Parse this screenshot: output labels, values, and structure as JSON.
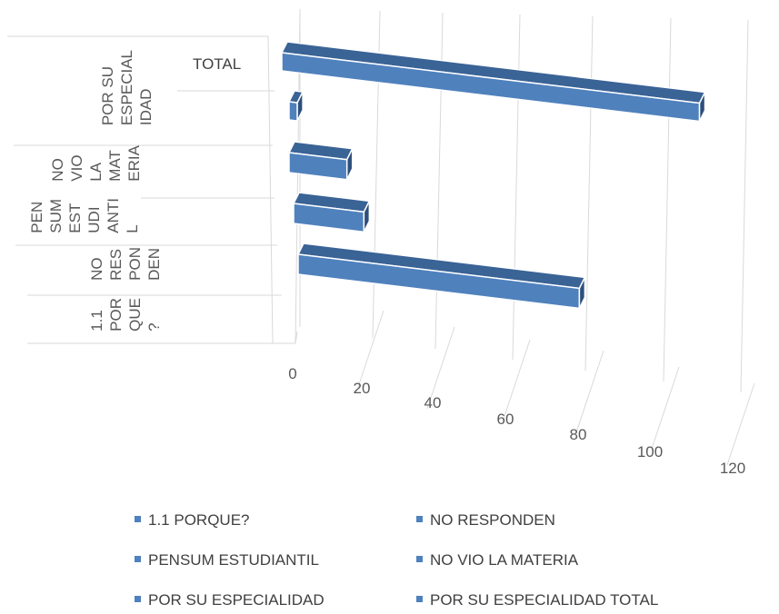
{
  "chart_data": {
    "type": "bar",
    "orientation": "horizontal-3d",
    "categories": [
      "1.1 POR QUE ?",
      "NO RES PON DEN",
      "PEN SUM EST UDI ANTI L",
      "NO VIO LA MAT ERIA",
      "POR SU ESPECIAL IDAD",
      "TOTAL"
    ],
    "category_label_lines": [
      [
        "1.1",
        "POR",
        "QUE",
        "?"
      ],
      [
        "NO",
        "RES",
        "PON",
        "DEN"
      ],
      [
        "PEN",
        "SUM",
        "EST",
        "UDI",
        "ANTI",
        "L"
      ],
      [
        "NO",
        "VIO",
        "LA",
        "MAT",
        "ERIA"
      ],
      [
        "POR SU",
        "ESPECIAL",
        "IDAD"
      ]
    ],
    "total_label": "TOTAL",
    "series": [
      {
        "name": "1.1 PORQUE?",
        "values": [
          0,
          0,
          0,
          0,
          0,
          0
        ]
      },
      {
        "name": "NO RESPONDEN",
        "values": [
          0,
          68,
          0,
          0,
          0,
          0
        ]
      },
      {
        "name": "PENSUM ESTUDIANTIL",
        "values": [
          0,
          0,
          17,
          0,
          0,
          0
        ]
      },
      {
        "name": "NO VIO LA MATERIA",
        "values": [
          0,
          0,
          0,
          14,
          0,
          0
        ]
      },
      {
        "name": "POR SU ESPECIALIDAD",
        "values": [
          0,
          0,
          0,
          0,
          2,
          0
        ]
      },
      {
        "name": "POR SU ESPECIALIDAD TOTAL",
        "values": [
          0,
          0,
          0,
          0,
          0,
          101
        ]
      }
    ],
    "bars": [
      {
        "category": "NO RES PON DEN",
        "value": 68
      },
      {
        "category": "PEN SUM EST UDI ANTI L",
        "value": 17
      },
      {
        "category": "NO VIO LA MAT ERIA",
        "value": 14
      },
      {
        "category": "POR SU ESPECIAL IDAD",
        "value": 2
      },
      {
        "category": "TOTAL",
        "value": 101
      }
    ],
    "x_ticks": [
      "0",
      "20",
      "40",
      "60",
      "80",
      "100",
      "120"
    ],
    "xlim": [
      0,
      120
    ],
    "grid": true,
    "legend_position": "bottom",
    "colors": {
      "bar_front": "#4f81bd",
      "bar_top": "#3a6396",
      "bar_side": "#2d4f7c",
      "grid": "#d9d9d9"
    }
  }
}
